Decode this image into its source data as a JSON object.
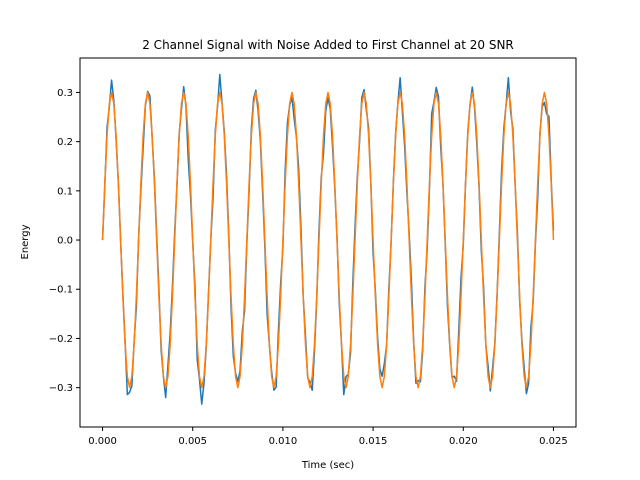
{
  "chart_data": {
    "type": "line",
    "title": "2 Channel Signal with Noise Added to First Channel at 20 SNR",
    "xlabel": "Time (sec)",
    "ylabel": "Energy",
    "xlim": [
      -0.00125,
      0.02625
    ],
    "ylim": [
      -0.38,
      0.37
    ],
    "xticks": [
      0.0,
      0.005,
      0.01,
      0.015,
      0.02,
      0.025
    ],
    "xtick_labels": [
      "0.000",
      "0.005",
      "0.010",
      "0.015",
      "0.020",
      "0.025"
    ],
    "yticks": [
      -0.3,
      -0.2,
      -0.1,
      0.0,
      0.1,
      0.2,
      0.3
    ],
    "ytick_labels": [
      "−0.3",
      "−0.2",
      "−0.1",
      "0.0",
      "0.1",
      "0.2",
      "0.3"
    ],
    "grid": false,
    "legend": null,
    "x": [
      0,
      0.0025,
      0.005,
      0.0075,
      0.01,
      0.0125,
      0.015,
      0.0175,
      0.02,
      0.0225,
      0.025
    ],
    "series": [
      {
        "color": "#1f77b4",
        "amplitude": 0.3,
        "frequency_hz": 500,
        "noise_amplitude": 0.03,
        "sample_rate_hz": 8000,
        "duration_sec": 0.025
      },
      {
        "color": "#ff7f0e",
        "amplitude": 0.3,
        "frequency_hz": 500,
        "noise_amplitude": 0.0,
        "sample_rate_hz": 8000,
        "duration_sec": 0.025
      }
    ]
  }
}
